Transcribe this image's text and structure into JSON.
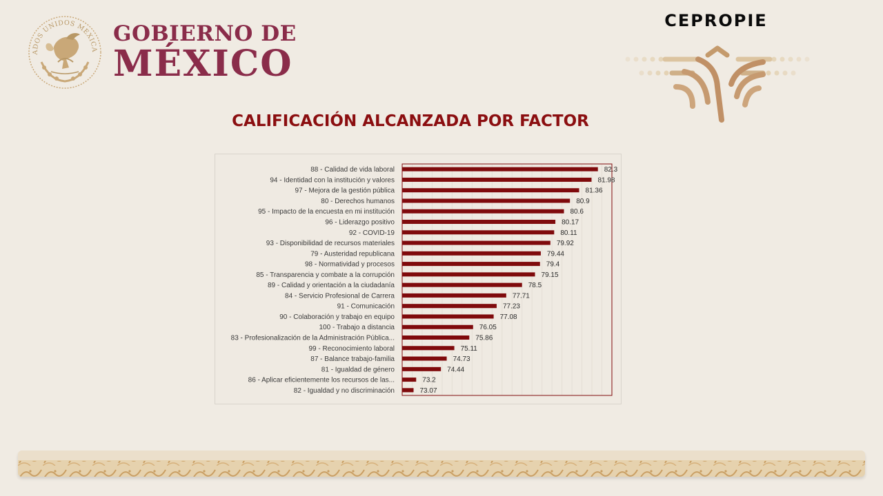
{
  "header": {
    "gov_line1": "GOBIERNO DE",
    "gov_line2": "MÉXICO",
    "seal_text": "ESTADOS UNIDOS MEXICANOS",
    "agency": "CEPROPIE"
  },
  "colors": {
    "bar": "#7f0a0c",
    "title": "#8b0e10",
    "gov": "#8a2c4a",
    "gold": "#c9a878",
    "background": "#f0ebe3"
  },
  "chart_data": {
    "type": "bar",
    "orientation": "horizontal",
    "title": "CALIFICACIÓN ALCANZADA POR FACTOR",
    "xlabel": "",
    "ylabel": "",
    "xlim": [
      72.5,
      83.0
    ],
    "grid": true,
    "legend": "none",
    "categories": [
      "88 - Calidad de vida laboral",
      "94 - Identidad con la institución y valores",
      "97 - Mejora de la gestión pública",
      "80 - Derechos humanos",
      "95 - Impacto de la encuesta en mi institución",
      "96 - Liderazgo positivo",
      "92 - COVID-19",
      "93 - Disponibilidad de recursos materiales",
      "79 - Austeridad republicana",
      "98 - Normatividad y procesos",
      "85 - Transparencia y combate a la corrupción",
      "89 - Calidad y orientación a la ciudadanía",
      "84 - Servicio Profesional de Carrera",
      "91 - Comunicación",
      "90 - Colaboración y trabajo en equipo",
      "100 - Trabajo a distancia",
      "83 - Profesionalización de la Administración Pública...",
      "99 - Reconocimiento laboral",
      "87 - Balance trabajo-familia",
      "81 - Igualdad de género",
      "86 - Aplicar eficientemente los recursos de las...",
      "82 - Igualdad y no discriminación"
    ],
    "values": [
      82.3,
      81.98,
      81.36,
      80.9,
      80.6,
      80.17,
      80.11,
      79.92,
      79.44,
      79.4,
      79.15,
      78.5,
      77.71,
      77.23,
      77.08,
      76.05,
      75.86,
      75.11,
      74.73,
      74.44,
      73.2,
      73.07
    ],
    "data_labels": [
      "82.3",
      "81.98",
      "81.36",
      "80.9",
      "80.6",
      "80.17",
      "80.11",
      "79.92",
      "79.44",
      "79.4",
      "79.15",
      "78.5",
      "77.71",
      "77.23",
      "77.08",
      "76.05",
      "75.86",
      "75.11",
      "74.73",
      "74.44",
      "73.2",
      "73.07"
    ]
  }
}
